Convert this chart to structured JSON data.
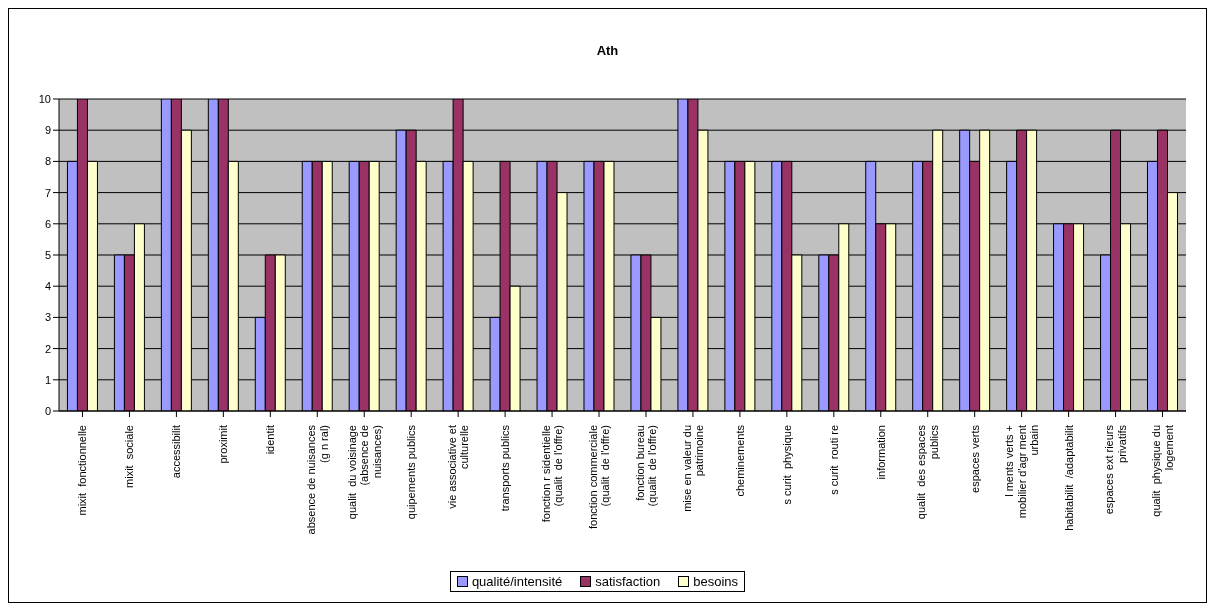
{
  "chart_data": {
    "type": "bar",
    "title": "Ath",
    "categories": [
      "mixit  fonctionnelle",
      "mixit  sociale",
      "accessibilit",
      "proximit",
      "identit",
      "absence de nuisances\n(g n ral)",
      "qualit  du voisinage\n(absence de\nnuisances)",
      "quipements publics",
      "vie associative et\nculturelle",
      "transports publics",
      "fonction r sidentielle\n(qualit  de l'offre)",
      "fonction commerciale\n(qualit  de l'offre)",
      "fonction bureau\n(qualit  de l'offre)",
      "mise en valeur du\npatrimoine",
      "cheminements",
      "s curit  physique",
      "s curit  routi re",
      "information",
      "qualit  des espaces\npublics",
      "espaces verts",
      "l ments verts +\nmobilier d'agr ment\nurbain",
      "habitabilit  /adaptabilit",
      "espaces ext rieurs\nprivatifs",
      "qualit  physique du\nlogement"
    ],
    "series": [
      {
        "name": "qualité/intensité",
        "color": "#9999ff",
        "values": [
          8,
          5,
          10,
          10,
          3,
          8,
          8,
          9,
          8,
          3,
          8,
          8,
          5,
          10,
          8,
          8,
          5,
          8,
          8,
          9,
          8,
          6,
          5,
          8
        ]
      },
      {
        "name": "satisfaction",
        "color": "#993366",
        "values": [
          10,
          5,
          10,
          10,
          5,
          8,
          8,
          9,
          10,
          8,
          8,
          8,
          5,
          10,
          8,
          8,
          5,
          6,
          8,
          8,
          9,
          6,
          9,
          9
        ]
      },
      {
        "name": "besoins",
        "color": "#ffffcc",
        "values": [
          8,
          6,
          9,
          8,
          5,
          8,
          8,
          8,
          8,
          4,
          7,
          8,
          3,
          9,
          8,
          5,
          6,
          6,
          9,
          9,
          9,
          6,
          6,
          7
        ]
      }
    ],
    "ylim": [
      0,
      10
    ],
    "yticks": [
      0,
      1,
      2,
      3,
      4,
      5,
      6,
      7,
      8,
      9,
      10
    ],
    "grid": "y",
    "legend": "bottom"
  }
}
